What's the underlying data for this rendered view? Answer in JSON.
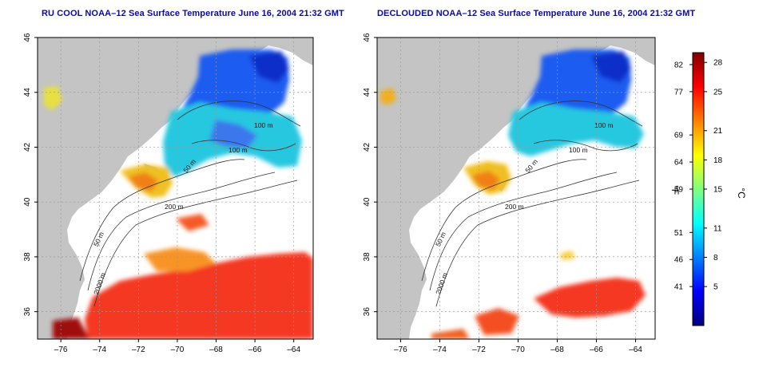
{
  "panels": [
    {
      "title": "RU COOL NOAA–12 Sea Surface Temperature June 16, 2004 21:32 GMT",
      "type": "raw"
    },
    {
      "title": "DECLOUDED NOAA–12 Sea Surface Temperature June 16, 2004 21:32 GMT",
      "type": "declouded"
    }
  ],
  "axes": {
    "lon_ticks": [
      "–76",
      "–74",
      "–72",
      "–70",
      "–68",
      "–66",
      "–64"
    ],
    "lon_values": [
      -76,
      -74,
      -72,
      -70,
      -68,
      -66,
      -64
    ],
    "lat_ticks": [
      "36",
      "38",
      "40",
      "42",
      "44",
      "46"
    ],
    "lat_values": [
      36,
      38,
      40,
      42,
      44,
      46
    ],
    "lon_range": [
      -77.2,
      -63.0
    ],
    "lat_range": [
      35.0,
      46.0
    ],
    "grid": "dotted"
  },
  "contours": {
    "left": [
      "100 m",
      "100 m",
      "50 m",
      "200 m",
      "50 m",
      "2000 m"
    ],
    "right": [
      "100 m",
      "100 m",
      "50 m",
      "200 m",
      "50 m",
      "2000 m"
    ]
  },
  "colorbar": {
    "f_label": "°F",
    "c_label": "°C",
    "f_ticks": [
      "82",
      "77",
      "69",
      "64",
      "59",
      "51",
      "46",
      "41"
    ],
    "f_values": [
      82,
      77,
      69,
      64,
      59,
      51,
      46,
      41
    ],
    "c_ticks": [
      "28",
      "25",
      "21",
      "18",
      "15",
      "11",
      "8",
      "5"
    ],
    "c_values": [
      28,
      25,
      21,
      18,
      15,
      11,
      8,
      5
    ],
    "c_range": [
      1,
      29
    ],
    "colors": [
      "#00007f",
      "#0000ff",
      "#0080ff",
      "#00ffff",
      "#80ff80",
      "#ffff00",
      "#ff8000",
      "#ff0000",
      "#7f0000"
    ]
  },
  "colors": {
    "land": "#c4c4c4",
    "no_data": "#ffffff",
    "title": "#0a0aa8",
    "contour": "#333333",
    "grid": "#9a9a9a"
  }
}
